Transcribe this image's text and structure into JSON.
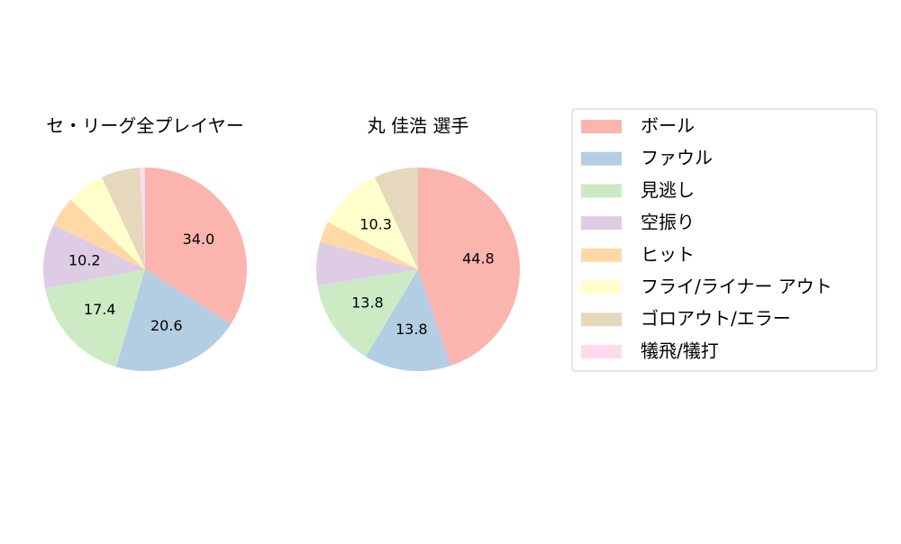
{
  "chart_data": [
    {
      "type": "pie",
      "title": "セ・リーグ全プレイヤー",
      "categories": [
        "ボール",
        "ファウル",
        "見逃し",
        "空振り",
        "ヒット",
        "フライ/ライナー アウト",
        "ゴロアウト/エラー",
        "犠飛/犠打"
      ],
      "values": [
        34.0,
        20.6,
        17.4,
        10.2,
        4.8,
        6.0,
        6.2,
        0.8
      ],
      "value_labels": [
        "34.0",
        "20.6",
        "17.4",
        "10.2",
        null,
        null,
        null,
        null
      ],
      "colors": [
        "#fbb4ae",
        "#b3cde3",
        "#ccebc5",
        "#decbe4",
        "#fed9a6",
        "#ffffcc",
        "#e5d8bd",
        "#fddaec"
      ]
    },
    {
      "type": "pie",
      "title": "丸 佳浩  選手",
      "categories": [
        "ボール",
        "ファウル",
        "見逃し",
        "空振り",
        "ヒット",
        "フライ/ライナー アウト",
        "ゴロアウト/エラー",
        "犠飛/犠打"
      ],
      "values": [
        44.8,
        13.8,
        13.8,
        6.9,
        3.4,
        10.3,
        7.0,
        0
      ],
      "value_labels": [
        "44.8",
        "13.8",
        "13.8",
        null,
        null,
        "10.3",
        null,
        null
      ],
      "colors": [
        "#fbb4ae",
        "#b3cde3",
        "#ccebc5",
        "#decbe4",
        "#fed9a6",
        "#ffffcc",
        "#e5d8bd",
        "#fddaec"
      ]
    }
  ]
}
